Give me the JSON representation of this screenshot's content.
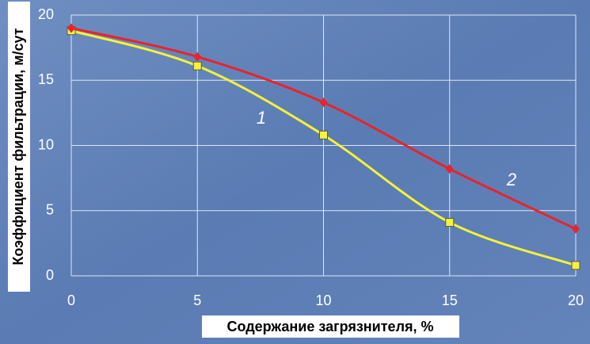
{
  "chart_data": {
    "type": "line",
    "x_label": "Содержание загрязнителя, %",
    "y_label": "Коэффициент фильтрации, м/сут",
    "x": [
      0,
      5,
      10,
      15,
      20
    ],
    "series": [
      {
        "name": "1",
        "color": "#f5f23a",
        "marker": "square",
        "values": [
          18.8,
          16.1,
          10.8,
          4.1,
          0.8
        ]
      },
      {
        "name": "2",
        "color": "#e8242a",
        "marker": "diamond",
        "values": [
          19.0,
          16.8,
          13.3,
          8.2,
          3.6
        ]
      }
    ],
    "xlim": [
      0,
      20
    ],
    "xticks": [
      0,
      5,
      10,
      15,
      20
    ],
    "ylim": [
      0,
      20
    ],
    "yticks": [
      0,
      5,
      10,
      15,
      20
    ],
    "grid": true
  }
}
